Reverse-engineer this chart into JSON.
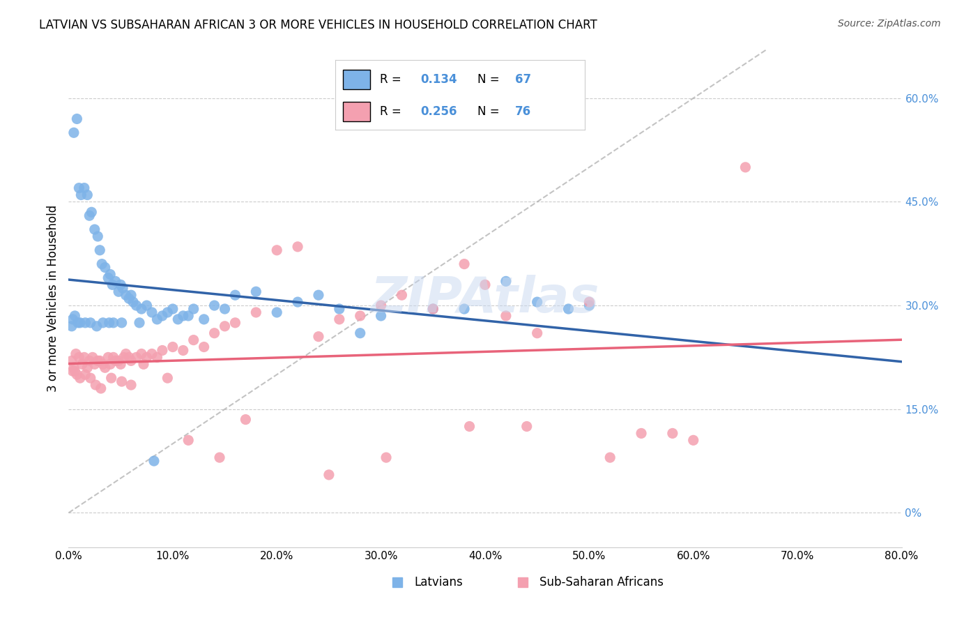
{
  "title": "LATVIAN VS SUBSAHARAN AFRICAN 3 OR MORE VEHICLES IN HOUSEHOLD CORRELATION CHART",
  "source": "Source: ZipAtlas.com",
  "xlabel_ticks": [
    "0.0%",
    "10.0%",
    "20.0%",
    "30.0%",
    "40.0%",
    "50.0%",
    "60.0%",
    "70.0%",
    "80.0%"
  ],
  "xlabel_vals": [
    0,
    10,
    20,
    30,
    40,
    50,
    60,
    70,
    80
  ],
  "ylabel_ticks_right": [
    "0%",
    "15.0%",
    "30.0%",
    "45.0%",
    "60.0%"
  ],
  "ylabel_vals_right": [
    0,
    15,
    30,
    45,
    60
  ],
  "ylabel_label": "3 or more Vehicles in Household",
  "xlim": [
    0,
    80
  ],
  "ylim": [
    -5,
    67
  ],
  "latvian_R": 0.134,
  "latvian_N": 67,
  "subsaharan_R": 0.256,
  "subsaharan_N": 76,
  "color_latvian": "#7eb3e8",
  "color_latvian_line": "#3163a8",
  "color_subsaharan": "#f4a0b0",
  "color_subsaharan_line": "#e8637a",
  "color_diagonal": "#aaaaaa",
  "watermark": "ZIPAtlas",
  "background_color": "#ffffff",
  "latvian_x": [
    0.5,
    0.8,
    1.0,
    1.2,
    1.5,
    1.8,
    2.0,
    2.2,
    2.5,
    2.8,
    3.0,
    3.2,
    3.5,
    3.8,
    4.0,
    4.2,
    4.5,
    4.8,
    5.0,
    5.2,
    5.5,
    5.8,
    6.0,
    6.2,
    6.5,
    7.0,
    7.5,
    8.0,
    8.5,
    9.0,
    9.5,
    10.0,
    10.5,
    11.0,
    12.0,
    13.0,
    14.0,
    16.0,
    18.0,
    20.0,
    22.0,
    24.0,
    26.0,
    28.0,
    30.0,
    35.0,
    38.0,
    42.0,
    45.0,
    48.0,
    50.0,
    0.3,
    0.4,
    0.6,
    0.9,
    1.1,
    1.6,
    2.1,
    2.7,
    3.3,
    3.9,
    4.3,
    5.1,
    6.8,
    8.2,
    11.5,
    15.0
  ],
  "latvian_y": [
    55.0,
    57.0,
    47.0,
    46.0,
    47.0,
    46.0,
    43.0,
    43.5,
    41.0,
    40.0,
    38.0,
    36.0,
    35.5,
    34.0,
    34.5,
    33.0,
    33.5,
    32.0,
    33.0,
    32.5,
    31.5,
    31.0,
    31.5,
    30.5,
    30.0,
    29.5,
    30.0,
    29.0,
    28.0,
    28.5,
    29.0,
    29.5,
    28.0,
    28.5,
    29.5,
    28.0,
    30.0,
    31.5,
    32.0,
    29.0,
    30.5,
    31.5,
    29.5,
    26.0,
    28.5,
    29.5,
    29.5,
    33.5,
    30.5,
    29.5,
    30.0,
    27.0,
    28.0,
    28.5,
    27.5,
    27.5,
    27.5,
    27.5,
    27.0,
    27.5,
    27.5,
    27.5,
    27.5,
    27.5,
    7.5,
    28.5,
    29.5
  ],
  "subsaharan_x": [
    0.3,
    0.5,
    0.7,
    1.0,
    1.3,
    1.5,
    1.8,
    2.0,
    2.3,
    2.5,
    2.8,
    3.0,
    3.3,
    3.5,
    3.8,
    4.0,
    4.3,
    4.5,
    4.8,
    5.0,
    5.3,
    5.5,
    5.8,
    6.0,
    6.5,
    7.0,
    7.5,
    8.0,
    8.5,
    9.0,
    10.0,
    11.0,
    12.0,
    13.0,
    14.0,
    15.0,
    16.0,
    18.0,
    20.0,
    22.0,
    24.0,
    26.0,
    28.0,
    30.0,
    32.0,
    35.0,
    38.0,
    40.0,
    42.0,
    45.0,
    50.0,
    55.0,
    60.0,
    65.0,
    0.4,
    0.6,
    0.8,
    1.1,
    1.6,
    2.1,
    2.6,
    3.1,
    4.1,
    5.1,
    6.0,
    7.2,
    9.5,
    11.5,
    14.5,
    17.0,
    25.0,
    30.5,
    38.5,
    44.0,
    52.0,
    58.0
  ],
  "subsaharan_y": [
    22.0,
    21.0,
    23.0,
    22.5,
    21.5,
    22.5,
    21.0,
    22.0,
    22.5,
    21.5,
    22.0,
    22.0,
    21.5,
    21.0,
    22.5,
    21.5,
    22.5,
    22.0,
    22.0,
    21.5,
    22.5,
    23.0,
    22.5,
    22.0,
    22.5,
    23.0,
    22.5,
    23.0,
    22.5,
    23.5,
    24.0,
    23.5,
    25.0,
    24.0,
    26.0,
    27.0,
    27.5,
    29.0,
    38.0,
    38.5,
    25.5,
    28.0,
    28.5,
    30.0,
    31.5,
    29.5,
    36.0,
    33.0,
    28.5,
    26.0,
    30.5,
    11.5,
    10.5,
    50.0,
    20.5,
    20.5,
    20.0,
    19.5,
    20.0,
    19.5,
    18.5,
    18.0,
    19.5,
    19.0,
    18.5,
    21.5,
    19.5,
    10.5,
    8.0,
    13.5,
    5.5,
    8.0,
    12.5,
    12.5,
    8.0,
    11.5
  ]
}
